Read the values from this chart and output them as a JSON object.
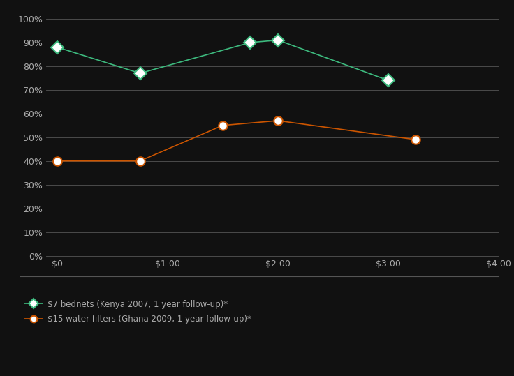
{
  "background_color": "#111111",
  "plot_bg_color": "#111111",
  "grid_color": "#555555",
  "text_color": "#aaaaaa",
  "series": [
    {
      "label": "$7 bednets (Kenya 2007, 1 year follow-up)*",
      "x": [
        0,
        0.75,
        1.75,
        2.0,
        3.0
      ],
      "y": [
        0.88,
        0.77,
        0.9,
        0.91,
        0.74
      ],
      "color": "#3dba7e",
      "marker": "D",
      "markersize": 9,
      "linewidth": 1.2,
      "markerfacecolor": "white",
      "markeredgewidth": 1.5
    },
    {
      "label": "$15 water filters (Ghana 2009, 1 year follow-up)*",
      "x": [
        0,
        0.75,
        1.5,
        2.0,
        3.25
      ],
      "y": [
        0.4,
        0.4,
        0.55,
        0.57,
        0.49
      ],
      "color": "#cc5500",
      "marker": "o",
      "markersize": 9,
      "linewidth": 1.2,
      "markerfacecolor": "white",
      "markeredgewidth": 1.5
    }
  ],
  "xlim": [
    -0.1,
    4.0
  ],
  "ylim": [
    0,
    1.0
  ],
  "xticks": [
    0,
    1.0,
    2.0,
    3.0,
    4.0
  ],
  "xticklabels": [
    "$0",
    "$1.00",
    "$2.00",
    "$3.00",
    "$4.00"
  ],
  "yticks": [
    0,
    0.1,
    0.2,
    0.3,
    0.4,
    0.5,
    0.6,
    0.7,
    0.8,
    0.9,
    1.0
  ],
  "yticklabels": [
    "0%",
    "10%",
    "20%",
    "30%",
    "40%",
    "50%",
    "60%",
    "70%",
    "80%",
    "90%",
    "100%"
  ],
  "separator_color": "#555555",
  "legend_fontsize": 8.5
}
